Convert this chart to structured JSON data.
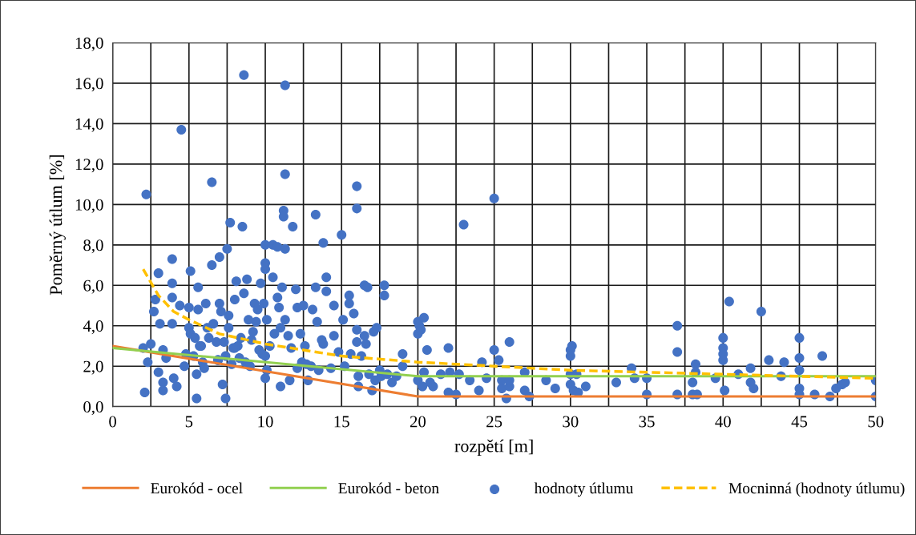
{
  "chart_data": {
    "type": "scatter",
    "xlabel": "rozpětí [m]",
    "ylabel": "Poměrný útlum [%]",
    "xlim": [
      0,
      50
    ],
    "ylim": [
      0,
      18
    ],
    "xticks": [
      0,
      {
        "value": 2.5,
        "label": null
      },
      5,
      {
        "value": 7.5,
        "label": null
      },
      10,
      {
        "value": 12.5,
        "label": null
      },
      15,
      {
        "value": 17.5,
        "label": null
      },
      20,
      {
        "value": 22.5,
        "label": null
      },
      25,
      {
        "value": 27.5,
        "label": null
      },
      30,
      {
        "value": 32.5,
        "label": null
      },
      35,
      {
        "value": 37.5,
        "label": null
      },
      40,
      {
        "value": 42.5,
        "label": null
      },
      45,
      {
        "value": 47.5,
        "label": null
      },
      50
    ],
    "yticks": [
      {
        "value": 0,
        "label": "0,0"
      },
      {
        "value": 2,
        "label": "2,0"
      },
      {
        "value": 4,
        "label": "4,0"
      },
      {
        "value": 6,
        "label": "6,0"
      },
      {
        "value": 8,
        "label": "8,0"
      },
      {
        "value": 10,
        "label": "10,0"
      },
      {
        "value": 12,
        "label": "12,0"
      },
      {
        "value": 14,
        "label": "14,0"
      },
      {
        "value": 16,
        "label": "16,0"
      },
      {
        "value": 18,
        "label": "18,0"
      }
    ],
    "grid": true,
    "legend": "bottom",
    "series": [
      {
        "name": "Eurokód - ocel",
        "type": "line",
        "color": "#ed7d31",
        "x": [
          0,
          20,
          50
        ],
        "values": [
          3.0,
          0.5,
          0.5
        ]
      },
      {
        "name": "Eurokód - beton",
        "type": "line",
        "color": "#92d050",
        "x": [
          0,
          20,
          50
        ],
        "values": [
          2.9,
          1.5,
          1.5
        ]
      },
      {
        "name": "hodnoty útlumu",
        "marker": "circle",
        "color": "#4472c4",
        "x": [
          2.1,
          2.2,
          2.0,
          2.3,
          2.5,
          2.7,
          2.8,
          3.0,
          3.1,
          3.0,
          3.3,
          3.3,
          3.3,
          3.5,
          3.9,
          3.9,
          3.9,
          3.9,
          4.0,
          4.2,
          4.4,
          4.5,
          4.7,
          4.8,
          5.0,
          5.0,
          5.1,
          5.1,
          5.3,
          5.4,
          5.5,
          5.5,
          5.6,
          5.6,
          5.8,
          5.9,
          6.0,
          6.1,
          6.2,
          6.5,
          6.5,
          6.6,
          6.8,
          6.9,
          7.0,
          7.1,
          7.0,
          7.2,
          7.4,
          7.4,
          7.5,
          7.6,
          7.7,
          7.6,
          7.8,
          8.0,
          8.1,
          8.2,
          8.3,
          8.4,
          8.5,
          8.6,
          8.6,
          8.8,
          8.9,
          9.0,
          9.1,
          9.3,
          9.5,
          9.7,
          9.9,
          10.0,
          10.0,
          10.0,
          10.1,
          10.0,
          10.1,
          10.0,
          10.3,
          10.5,
          10.5,
          10.8,
          10.8,
          10.9,
          11.0,
          11.1,
          11.2,
          11.2,
          11.3,
          11.3,
          11.3,
          11.3,
          11.5,
          11.6,
          11.8,
          12.0,
          12.1,
          12.1,
          12.3,
          12.5,
          12.6,
          12.8,
          13.0,
          13.1,
          13.3,
          13.3,
          13.4,
          13.5,
          13.8,
          13.8,
          14.0,
          14.0,
          14.3,
          14.5,
          14.5,
          15.0,
          15.1,
          15.2,
          15.5,
          15.5,
          15.8,
          16.0,
          16.0,
          16.0,
          16.0,
          16.1,
          16.1,
          16.3,
          16.5,
          16.7,
          16.5,
          16.8,
          17.0,
          17.1,
          17.3,
          17.2,
          17.5,
          17.6,
          17.8,
          17.8,
          18.0,
          18.3,
          18.6,
          19.0,
          19.0,
          20.0,
          20.1,
          20.0,
          20.2,
          20.0,
          20.3,
          20.4,
          20.6,
          20.4,
          20.8,
          21.0,
          21.5,
          22.0,
          22.1,
          22.0,
          22.5,
          22.7,
          23.0,
          23.4,
          24.0,
          24.2,
          24.5,
          25.0,
          25.0,
          25.3,
          25.5,
          25.5,
          25.8,
          26.0,
          26.0,
          26.0,
          27.0,
          27.0,
          27.3,
          28.4,
          29.0,
          30.0,
          30.0,
          30.1,
          30.0,
          30.0,
          30.2,
          30.4,
          30.5,
          31.0,
          33.0,
          34.0,
          34.2,
          35.0,
          35.0,
          37.0,
          37.0,
          37.0,
          38.0,
          38.0,
          38.2,
          38.2,
          38.3,
          39.5,
          40.0,
          40.0,
          40.0,
          40.0,
          40.1,
          40.4,
          41.0,
          41.8,
          41.8,
          42.0,
          42.5,
          43.0,
          43.8,
          44.0,
          45.0,
          45.0,
          45.0,
          45.0,
          45.0,
          46.0,
          46.5,
          47.0,
          47.4,
          48.0,
          47.8,
          50.0,
          50.0,
          6.3,
          7.3,
          8.0,
          9.2,
          9.6,
          10.6,
          11.7,
          12.4,
          13.7,
          14.8,
          6.9,
          8.7,
          9.8,
          11.0,
          12.7,
          15.6,
          16.6,
          5.7,
          7.9,
          9.4
        ],
        "values": [
          0.7,
          10.5,
          2.9,
          2.2,
          3.1,
          4.7,
          5.3,
          6.6,
          4.1,
          1.7,
          2.8,
          1.2,
          0.8,
          2.4,
          7.3,
          6.1,
          5.4,
          4.1,
          1.4,
          1.0,
          5.0,
          13.7,
          2.0,
          2.6,
          3.9,
          4.9,
          6.7,
          3.6,
          2.5,
          3.4,
          1.6,
          0.4,
          5.9,
          4.8,
          3.0,
          2.2,
          1.9,
          5.1,
          3.9,
          7.0,
          11.1,
          4.1,
          3.2,
          2.3,
          5.1,
          4.7,
          7.4,
          1.1,
          0.4,
          2.5,
          7.8,
          4.5,
          9.1,
          3.9,
          2.1,
          5.3,
          6.2,
          3.0,
          2.4,
          3.4,
          8.9,
          16.4,
          5.6,
          6.3,
          4.3,
          2.0,
          3.3,
          5.1,
          4.8,
          6.1,
          5.1,
          8.0,
          7.1,
          6.8,
          4.3,
          2.5,
          1.8,
          1.4,
          3.0,
          8.0,
          6.4,
          7.9,
          5.4,
          4.9,
          1.0,
          5.9,
          9.7,
          9.4,
          11.5,
          15.9,
          7.8,
          4.3,
          3.5,
          1.3,
          8.9,
          5.8,
          4.9,
          1.9,
          3.6,
          5.0,
          3.0,
          1.3,
          2.0,
          4.8,
          9.5,
          5.9,
          4.2,
          1.8,
          3.1,
          8.1,
          6.4,
          5.7,
          1.9,
          3.5,
          5.0,
          8.5,
          4.3,
          2.0,
          5.5,
          5.1,
          4.6,
          10.9,
          9.8,
          3.8,
          3.2,
          1.0,
          1.5,
          2.5,
          6.0,
          5.9,
          3.5,
          1.6,
          0.8,
          3.7,
          3.9,
          1.3,
          1.8,
          1.5,
          6.0,
          5.5,
          1.6,
          1.2,
          1.5,
          2.6,
          2.0,
          4.2,
          4.0,
          3.6,
          3.8,
          1.3,
          1.0,
          4.4,
          2.8,
          1.7,
          1.2,
          1.0,
          1.6,
          2.9,
          1.7,
          0.7,
          0.6,
          1.6,
          9.0,
          1.3,
          0.8,
          2.2,
          1.4,
          10.3,
          2.8,
          2.3,
          0.9,
          1.3,
          0.4,
          3.2,
          1.0,
          1.3,
          1.7,
          0.8,
          0.5,
          1.3,
          0.9,
          2.8,
          2.5,
          3.0,
          1.6,
          1.1,
          0.8,
          1.6,
          0.7,
          1.0,
          1.2,
          1.9,
          1.4,
          0.6,
          1.4,
          4.0,
          2.7,
          0.6,
          1.2,
          0.6,
          2.1,
          1.7,
          0.6,
          1.4,
          3.4,
          2.9,
          2.6,
          2.3,
          0.8,
          5.2,
          1.6,
          1.9,
          1.2,
          0.9,
          4.7,
          2.3,
          1.5,
          2.2,
          3.4,
          2.4,
          1.8,
          0.9,
          0.6,
          0.6,
          2.5,
          0.5,
          0.9,
          1.2,
          1.1,
          1.3,
          0.5,
          3.4,
          3.2,
          2.9,
          3.7,
          2.8,
          3.6,
          2.9,
          2.2,
          3.3,
          2.7,
          2.3,
          2.2,
          2.6,
          3.9,
          2.1,
          2.6,
          3.1,
          3.0,
          2.9,
          4.2
        ]
      },
      {
        "name": "Mocninná (hodnoty útlumu)",
        "type": "line",
        "line_style": "dashed",
        "color": "#ffc000",
        "x": [
          2,
          3,
          4,
          5,
          7,
          10,
          15,
          20,
          25,
          30,
          40,
          50
        ],
        "values": [
          6.8,
          5.5,
          4.7,
          4.3,
          3.6,
          3.1,
          2.5,
          2.2,
          2.0,
          1.8,
          1.6,
          1.4
        ]
      }
    ]
  }
}
